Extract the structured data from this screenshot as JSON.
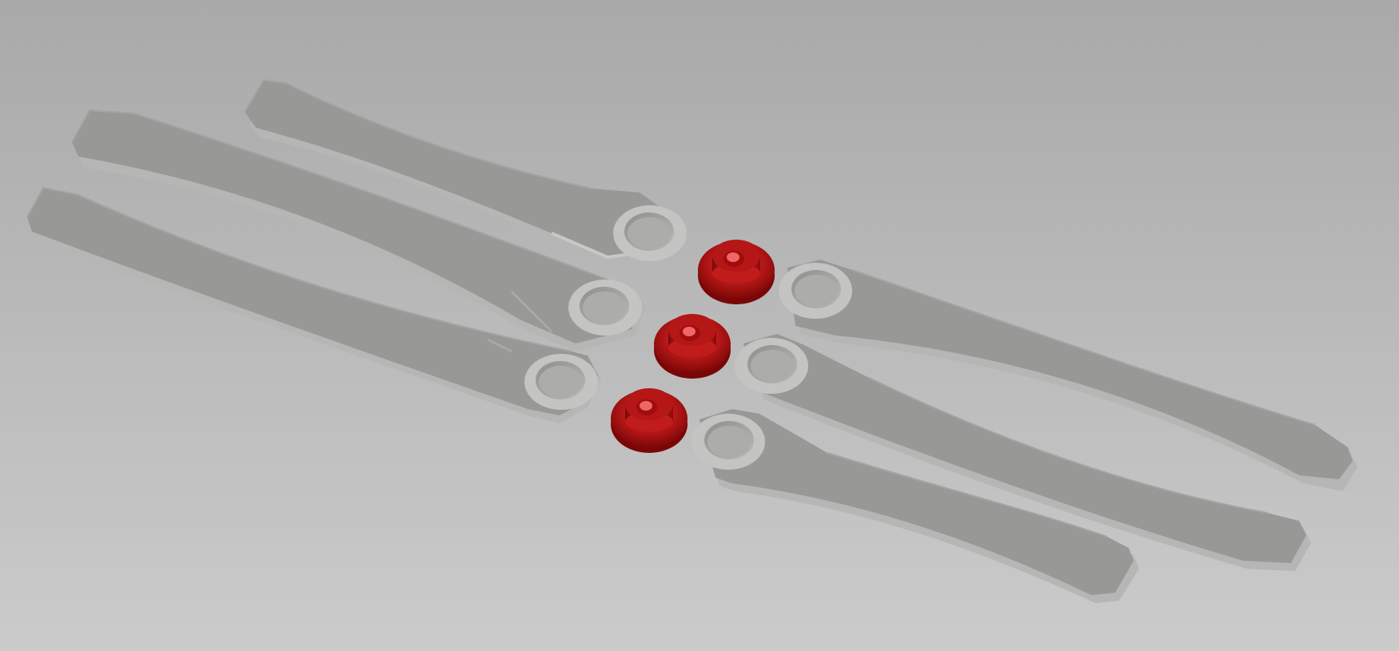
{
  "scene": {
    "description_visible_text": "",
    "background": {
      "top": "#a9a9a9",
      "bottom": "#cacaca"
    },
    "parts": {
      "handle_count": 6,
      "bushing_count": 3,
      "handle_color": "#989896",
      "handle_edge": "#c4c4c2",
      "handle_shadow": "#b4b4b2",
      "bushing_color": "#a30f0f",
      "bushing_highlight": "#e02a2a",
      "bushing_dark": "#6e0606"
    }
  }
}
